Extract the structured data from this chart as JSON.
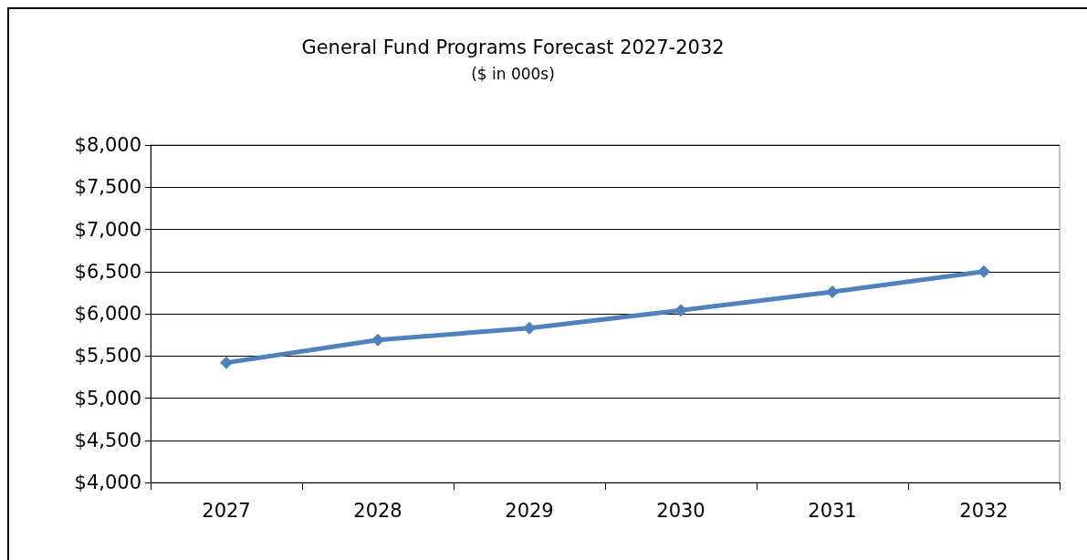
{
  "chart_data": {
    "type": "line",
    "title": "General Fund Programs Forecast 2027-2032",
    "subtitle": "($ in 000s)",
    "categories": [
      "2027",
      "2028",
      "2029",
      "2030",
      "2031",
      "2032"
    ],
    "series": [
      {
        "color": "#4f81bd",
        "values": [
          5420,
          5690,
          5830,
          6040,
          6260,
          6500
        ]
      }
    ],
    "ylim": [
      4000,
      8000
    ],
    "yticks": [
      {
        "value": 4000,
        "label": "$4,000"
      },
      {
        "value": 4500,
        "label": "$4,500"
      },
      {
        "value": 5000,
        "label": "$5,000"
      },
      {
        "value": 5500,
        "label": "$5,500"
      },
      {
        "value": 6000,
        "label": "$6,000"
      },
      {
        "value": 6500,
        "label": "$6,500"
      },
      {
        "value": 7000,
        "label": "$7,000"
      },
      {
        "value": 7500,
        "label": "$7,500"
      },
      {
        "value": 8000,
        "label": "$8,000"
      }
    ],
    "grid": "y",
    "marker": "diamond",
    "line_style": "solid"
  }
}
